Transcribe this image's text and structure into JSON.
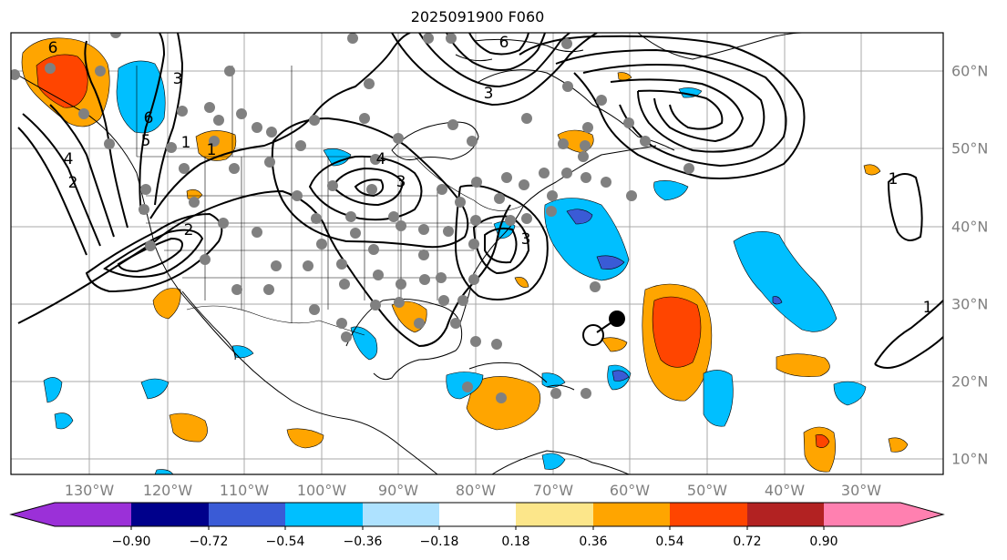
{
  "title": "2025091900 F060",
  "lon_labels": [
    "130°W",
    "120°W",
    "110°W",
    "100°W",
    "90°W",
    "80°W",
    "70°W",
    "60°W",
    "50°W",
    "40°W",
    "30°W"
  ],
  "lat_labels": [
    "60°N",
    "50°N",
    "40°N",
    "30°N",
    "20°N",
    "10°N"
  ],
  "contour_labels": [
    "6",
    "6",
    "5",
    "4",
    "3",
    "2",
    "1",
    "2",
    "3",
    "3",
    "4",
    "6",
    "3",
    "1",
    "1",
    "1"
  ],
  "colorbar": {
    "tick_labels": [
      "−0.90",
      "−0.72",
      "−0.54",
      "−0.36",
      "−0.18",
      "0.18",
      "0.36",
      "0.54",
      "0.72",
      "0.90"
    ],
    "bin_colors": [
      "#9b30d8",
      "#00008b",
      "#3a5bd6",
      "#00bfff",
      "#aee2ff",
      "#ffffff",
      "#fce68a",
      "#ffa500",
      "#ff4500",
      "#b22222",
      "#ff80b0"
    ]
  },
  "colors": {
    "gray_marker": "#808080",
    "orange": "#ffa500",
    "red_orange": "#ff4500",
    "deep_sky": "#00bfff",
    "royal": "#3a5bd6"
  }
}
